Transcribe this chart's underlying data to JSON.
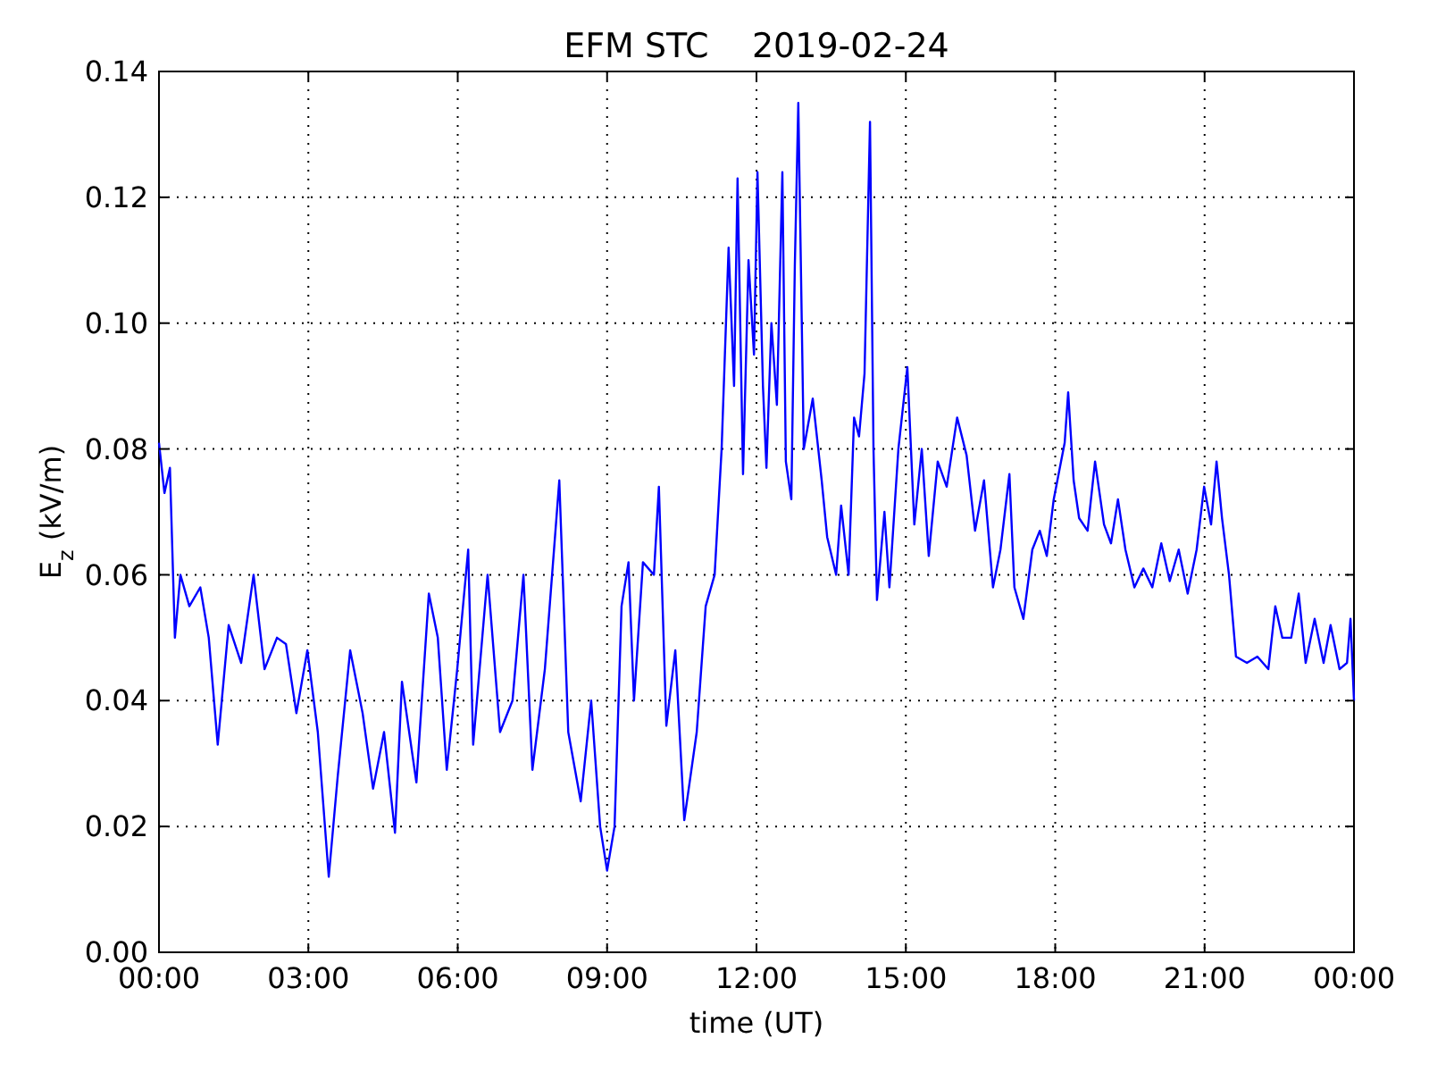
{
  "chart_data": {
    "type": "line",
    "title": "EFM STC    2019-02-24",
    "xlabel": "time (UT)",
    "ylabel": "E$_{z}$ (kV/m)",
    "xlim": [
      0,
      24
    ],
    "xticks": [
      {
        "value": 0,
        "label": "00:00"
      },
      {
        "value": 3,
        "label": "03:00"
      },
      {
        "value": 6,
        "label": "06:00"
      },
      {
        "value": 9,
        "label": "09:00"
      },
      {
        "value": 12,
        "label": "12:00"
      },
      {
        "value": 15,
        "label": "15:00"
      },
      {
        "value": 18,
        "label": "18:00"
      },
      {
        "value": 21,
        "label": "21:00"
      },
      {
        "value": 24,
        "label": "00:00"
      }
    ],
    "ylim": [
      0,
      0.14
    ],
    "yticks": [
      {
        "value": 0,
        "label": "0.00"
      },
      {
        "value": 0.02,
        "label": "0.02"
      },
      {
        "value": 0.04,
        "label": "0.04"
      },
      {
        "value": 0.06,
        "label": "0.06"
      },
      {
        "value": 0.08,
        "label": "0.08"
      },
      {
        "value": 0.1,
        "label": "0.10"
      },
      {
        "value": 0.12,
        "label": "0.12"
      },
      {
        "value": 0.14,
        "label": "0.14"
      }
    ],
    "grid": true,
    "marker": "none",
    "line_style": "solid",
    "x": [
      0,
      0.11,
      0.22,
      0.32,
      0.43,
      0.61,
      0.83,
      1.0,
      1.18,
      1.4,
      1.65,
      1.9,
      2.12,
      2.37,
      2.55,
      2.76,
      2.98,
      3.19,
      3.41,
      3.59,
      3.84,
      4.09,
      4.3,
      4.52,
      4.74,
      4.88,
      5.17,
      5.42,
      5.6,
      5.78,
      5.99,
      6.21,
      6.31,
      6.6,
      6.85,
      7.1,
      7.32,
      7.5,
      7.75,
      8.04,
      8.22,
      8.47,
      8.68,
      8.86,
      9.0,
      9.15,
      9.29,
      9.43,
      9.54,
      9.72,
      9.94,
      10.04,
      10.19,
      10.37,
      10.55,
      10.8,
      10.98,
      11.16,
      11.3,
      11.44,
      11.55,
      11.62,
      11.73,
      11.84,
      11.95,
      12.02,
      12.13,
      12.2,
      12.3,
      12.41,
      12.52,
      12.59,
      12.7,
      12.77,
      12.84,
      12.95,
      13.13,
      13.31,
      13.42,
      13.6,
      13.7,
      13.85,
      13.96,
      14.06,
      14.17,
      14.28,
      14.35,
      14.42,
      14.57,
      14.67,
      14.85,
      15.03,
      15.17,
      15.32,
      15.46,
      15.64,
      15.82,
      16.03,
      16.22,
      16.39,
      16.57,
      16.75,
      16.9,
      17.08,
      17.18,
      17.36,
      17.54,
      17.69,
      17.83,
      17.97,
      18.19,
      18.26,
      18.37,
      18.48,
      18.65,
      18.8,
      18.98,
      19.12,
      19.26,
      19.41,
      19.59,
      19.77,
      19.95,
      20.13,
      20.3,
      20.48,
      20.66,
      20.84,
      20.99,
      21.13,
      21.24,
      21.35,
      21.49,
      21.63,
      21.85,
      22.06,
      22.28,
      22.42,
      22.56,
      22.74,
      22.89,
      23.03,
      23.21,
      23.39,
      23.53,
      23.71,
      23.86,
      23.93,
      24
    ],
    "series": [
      {
        "color": "#0000ff",
        "values": [
          0.081,
          0.073,
          0.077,
          0.05,
          0.06,
          0.055,
          0.058,
          0.05,
          0.033,
          0.052,
          0.046,
          0.06,
          0.045,
          0.05,
          0.049,
          0.038,
          0.048,
          0.035,
          0.012,
          0.028,
          0.048,
          0.038,
          0.026,
          0.035,
          0.019,
          0.043,
          0.027,
          0.057,
          0.05,
          0.029,
          0.045,
          0.064,
          0.033,
          0.06,
          0.035,
          0.04,
          0.06,
          0.029,
          0.045,
          0.075,
          0.035,
          0.024,
          0.04,
          0.02,
          0.013,
          0.02,
          0.055,
          0.062,
          0.04,
          0.062,
          0.06,
          0.074,
          0.036,
          0.048,
          0.021,
          0.035,
          0.055,
          0.06,
          0.08,
          0.112,
          0.09,
          0.123,
          0.076,
          0.11,
          0.095,
          0.124,
          0.09,
          0.077,
          0.1,
          0.087,
          0.124,
          0.078,
          0.072,
          0.109,
          0.135,
          0.08,
          0.088,
          0.075,
          0.066,
          0.06,
          0.071,
          0.06,
          0.085,
          0.082,
          0.092,
          0.132,
          0.08,
          0.056,
          0.07,
          0.058,
          0.08,
          0.093,
          0.068,
          0.08,
          0.063,
          0.078,
          0.074,
          0.085,
          0.079,
          0.067,
          0.075,
          0.058,
          0.064,
          0.076,
          0.058,
          0.053,
          0.064,
          0.067,
          0.063,
          0.072,
          0.081,
          0.089,
          0.075,
          0.069,
          0.067,
          0.078,
          0.068,
          0.065,
          0.072,
          0.064,
          0.058,
          0.061,
          0.058,
          0.065,
          0.059,
          0.064,
          0.057,
          0.064,
          0.074,
          0.068,
          0.078,
          0.069,
          0.06,
          0.047,
          0.046,
          0.047,
          0.045,
          0.055,
          0.05,
          0.05,
          0.057,
          0.046,
          0.053,
          0.046,
          0.052,
          0.045,
          0.046,
          0.053,
          0.04
        ]
      }
    ]
  }
}
